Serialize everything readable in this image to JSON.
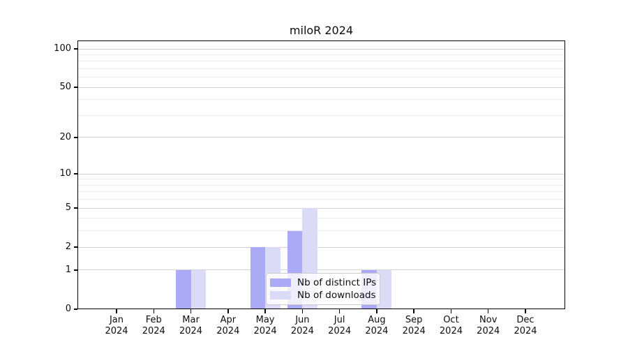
{
  "chart_data": {
    "type": "bar",
    "title": "miloR 2024",
    "categories": [
      {
        "month": "Jan",
        "year": "2024"
      },
      {
        "month": "Feb",
        "year": "2024"
      },
      {
        "month": "Mar",
        "year": "2024"
      },
      {
        "month": "Apr",
        "year": "2024"
      },
      {
        "month": "May",
        "year": "2024"
      },
      {
        "month": "Jun",
        "year": "2024"
      },
      {
        "month": "Jul",
        "year": "2024"
      },
      {
        "month": "Aug",
        "year": "2024"
      },
      {
        "month": "Sep",
        "year": "2024"
      },
      {
        "month": "Oct",
        "year": "2024"
      },
      {
        "month": "Nov",
        "year": "2024"
      },
      {
        "month": "Dec",
        "year": "2024"
      }
    ],
    "series": [
      {
        "name": "Nb of distinct IPs",
        "color": "#aaaaf6",
        "values": [
          0,
          0,
          1,
          0,
          2,
          3,
          0,
          1,
          0,
          0,
          0,
          0
        ]
      },
      {
        "name": "Nb of downloads",
        "color": "#dbdbf8",
        "values": [
          0,
          0,
          1,
          0,
          2,
          5,
          0,
          1,
          0,
          0,
          0,
          0
        ]
      }
    ],
    "y_axis": {
      "scale": "log1p",
      "tick_values": [
        0,
        1,
        2,
        5,
        10,
        20,
        50,
        100
      ],
      "minor_grid_values": [
        3,
        4,
        6,
        7,
        8,
        9,
        30,
        40,
        60,
        70,
        80,
        90
      ],
      "max_display": 117
    },
    "xlabel": "",
    "ylabel": "",
    "grid": true,
    "legend_position": "lower-center",
    "colors": {
      "major_grid": "#d2d2d2",
      "minor_grid": "#ececec",
      "spine": "#000000",
      "background": "#ffffff"
    }
  }
}
